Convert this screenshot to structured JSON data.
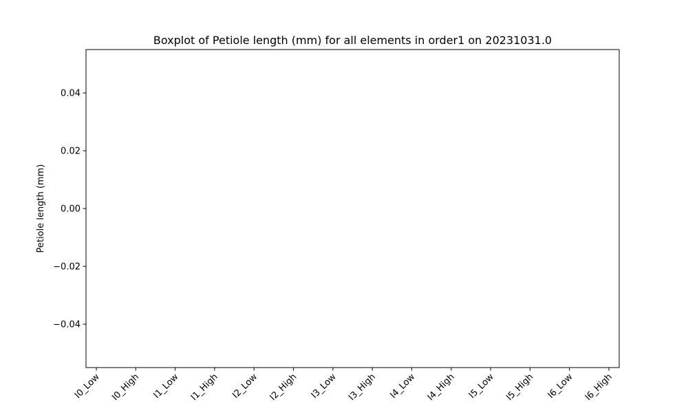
{
  "chart_data": {
    "type": "box",
    "title": "Boxplot of Petiole length (mm) for all elements in order1 on 20231031.0",
    "xlabel": "",
    "ylabel": "Petiole length (mm)",
    "categories": [
      "I0_Low",
      "I0_High",
      "I1_Low",
      "I1_High",
      "I2_Low",
      "I2_High",
      "I3_Low",
      "I3_High",
      "I4_Low",
      "I4_High",
      "I5_Low",
      "I5_High",
      "I6_Low",
      "I6_High"
    ],
    "series": [],
    "ylim": [
      -0.055,
      0.055
    ],
    "yticks": [
      -0.04,
      -0.02,
      0.0,
      0.02,
      0.04
    ],
    "ytick_labels": [
      "−0.04",
      "−0.02",
      "0.00",
      "0.02",
      "0.04"
    ],
    "grid": false,
    "colors": {
      "axis": "#000000",
      "background": "#ffffff"
    }
  }
}
